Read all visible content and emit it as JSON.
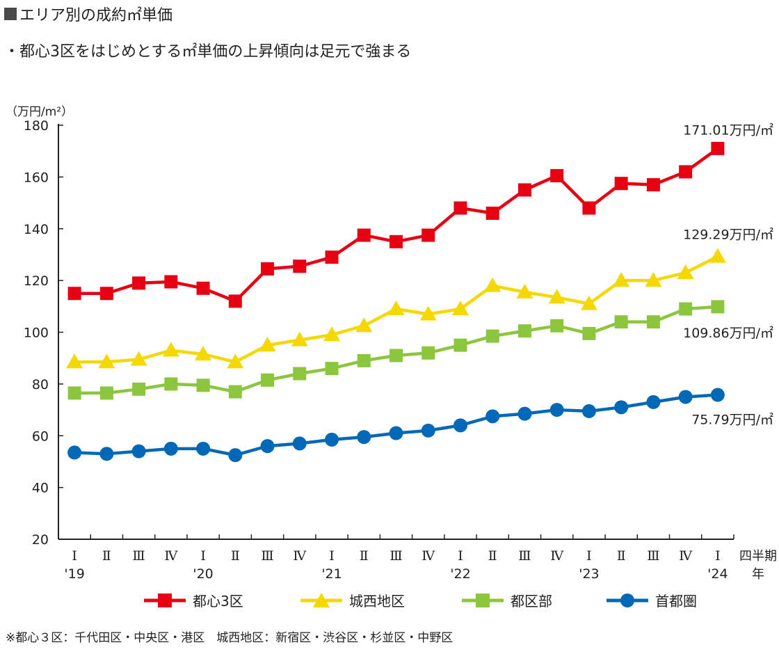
{
  "header": {
    "title": "エリア別の成約㎡単価",
    "subtitle": "・都心3区をはじめとする㎡単価の上昇傾向は足元で強まる"
  },
  "footnote": "※都心３区：千代田区・中央区・港区　城西地区：新宿区・渋谷区・杉並区・中野区",
  "colors": {
    "toshin3": "#e60012",
    "josai": "#f5d800",
    "tokubu": "#8cc63f",
    "shutoken": "#0068b7"
  },
  "chart_data": {
    "type": "line",
    "ylabel": "（万円/m²）",
    "xlabel": "四半期\n年",
    "ylim": [
      20,
      180
    ],
    "yticks": [
      20,
      40,
      60,
      80,
      100,
      120,
      140,
      160,
      180
    ],
    "grid": false,
    "legend": "bottom",
    "quarters": [
      "Ⅰ",
      "Ⅱ",
      "Ⅲ",
      "Ⅳ",
      "Ⅰ",
      "Ⅱ",
      "Ⅲ",
      "Ⅳ",
      "Ⅰ",
      "Ⅱ",
      "Ⅲ",
      "Ⅳ",
      "Ⅰ",
      "Ⅱ",
      "Ⅲ",
      "Ⅳ",
      "Ⅰ",
      "Ⅱ",
      "Ⅲ",
      "Ⅳ",
      "Ⅰ"
    ],
    "years": [
      {
        "label": "'19",
        "index": 0
      },
      {
        "label": "'20",
        "index": 4
      },
      {
        "label": "'21",
        "index": 8
      },
      {
        "label": "'22",
        "index": 12
      },
      {
        "label": "'23",
        "index": 16
      },
      {
        "label": "'24",
        "index": 20
      }
    ],
    "series": [
      {
        "key": "toshin3",
        "name": "都心3区",
        "marker": "square",
        "values": [
          115,
          115,
          119,
          119.5,
          117,
          112,
          124.5,
          125.5,
          129,
          137.5,
          135,
          137.5,
          148,
          146,
          155,
          160.5,
          148,
          157.5,
          157,
          162,
          171.01
        ],
        "end_label": "171.01万円/㎡"
      },
      {
        "key": "josai",
        "name": "城西地区",
        "marker": "triangle",
        "values": [
          88.5,
          88.5,
          89.5,
          93,
          91.5,
          88.5,
          95,
          97,
          99,
          102.5,
          109,
          107,
          109,
          118,
          115.5,
          113.5,
          111,
          120,
          120,
          123,
          129.29
        ],
        "end_label": "129.29万円/㎡"
      },
      {
        "key": "tokubu",
        "name": "都区部",
        "marker": "square",
        "values": [
          76.5,
          76.5,
          78,
          80,
          79.5,
          77,
          81.5,
          84,
          86,
          89,
          91,
          92,
          95,
          98.5,
          100.5,
          102.5,
          99.5,
          104,
          104,
          109,
          109.86
        ],
        "end_label": "109.86万円/㎡"
      },
      {
        "key": "shutoken",
        "name": "首都圏",
        "marker": "circle",
        "values": [
          53.5,
          53,
          54,
          55,
          55,
          52.5,
          56,
          57,
          58.5,
          59.5,
          61,
          62,
          64,
          67.5,
          68.5,
          70,
          69.5,
          71,
          73,
          75,
          75.79
        ],
        "end_label": "75.79万円/㎡"
      }
    ]
  }
}
